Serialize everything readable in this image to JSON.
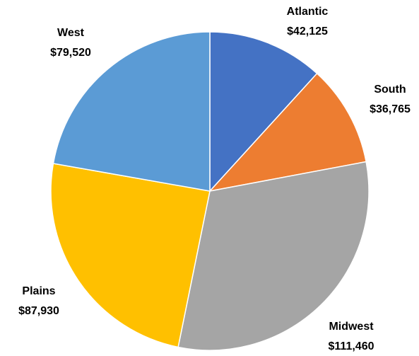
{
  "chart_data": {
    "type": "pie",
    "categories": [
      "Atlantic",
      "South",
      "Midwest",
      "Plains",
      "West"
    ],
    "values": [
      42125,
      36765,
      111460,
      87930,
      79520
    ],
    "value_labels": [
      "$42,125",
      "$36,765",
      "$111,460",
      "$87,930",
      "$79,520"
    ],
    "colors": [
      "#4472c4",
      "#ed7d31",
      "#a5a5a5",
      "#ffc000",
      "#5b9bd5"
    ]
  }
}
